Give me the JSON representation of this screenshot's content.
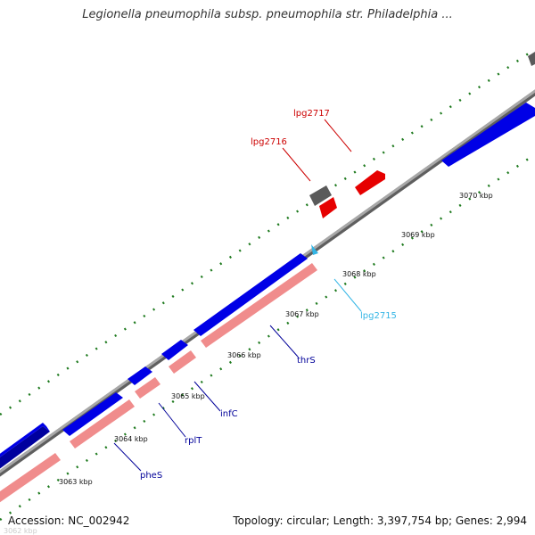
{
  "title": "Legionella pneumophila subsp. pneumophila str. Philadelphia ...",
  "footer": {
    "accession": "Accession: NC_002942",
    "summary": "Topology: circular; Length: 3,397,754 bp; Genes: 2,994"
  },
  "faint_label": "3062 kbp",
  "colors": {
    "backbone": "#8f8f8f",
    "forward_gene": "#0000e6",
    "reverse_cds": "#f08c8c",
    "highlight_forward": "#e60000",
    "pseudo_gray": "#5a5a5a",
    "highlight_reverse": "#33b5e5",
    "tick": "#1e7a1e",
    "gene_label_blue": "#000099",
    "gene_label_red": "#cc0000"
  },
  "ticks": [
    {
      "label": "3063 kbp"
    },
    {
      "label": "3064 kbp"
    },
    {
      "label": "3065 kbp"
    },
    {
      "label": "3066 kbp"
    },
    {
      "label": "3067 kbp"
    },
    {
      "label": "3068 kbp"
    },
    {
      "label": "3069 kbp"
    },
    {
      "label": "3070 kbp"
    }
  ],
  "gene_labels": [
    {
      "text": "pheS"
    },
    {
      "text": "rplT"
    },
    {
      "text": "infC"
    },
    {
      "text": "thrS"
    },
    {
      "text": "lpg2715"
    },
    {
      "text": "lpg2716"
    },
    {
      "text": "lpg2717"
    }
  ]
}
